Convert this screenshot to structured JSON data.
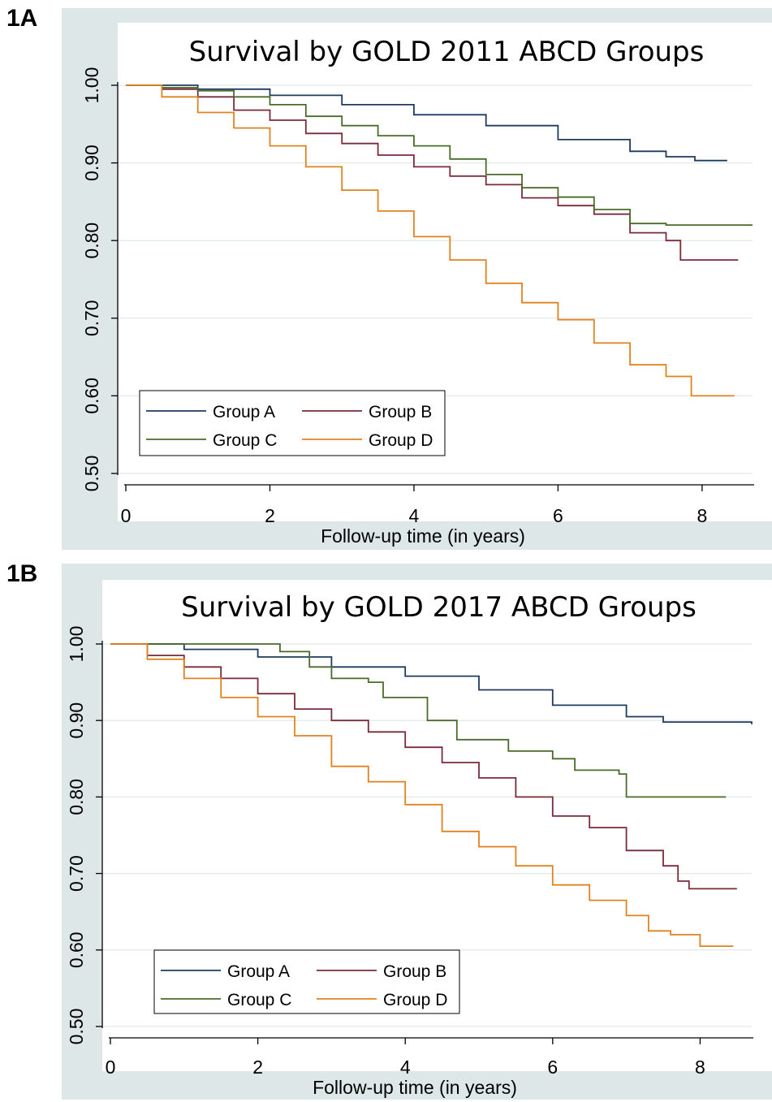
{
  "panels": [
    {
      "label": "1A",
      "chart_data": {
        "type": "line",
        "title": "Survival by GOLD 2011 ABCD Groups",
        "xlabel": "Follow-up time (in years)",
        "ylabel": "",
        "xlim": [
          0,
          8.7
        ],
        "ylim": [
          0.5,
          1.0
        ],
        "xticks": [
          0,
          2,
          4,
          6,
          8
        ],
        "yticks": [
          0.5,
          0.6,
          0.7,
          0.8,
          0.9,
          1.0
        ],
        "ytick_labels": [
          "0.50",
          "0.60",
          "0.70",
          "0.80",
          "0.90",
          "1.00"
        ],
        "grid": "horizontal",
        "legend_placement": "bottom-left",
        "series": [
          {
            "name": "Group A",
            "color": "#1f3a60",
            "points": [
              [
                0,
                1.0
              ],
              [
                1,
                0.995
              ],
              [
                2,
                0.987
              ],
              [
                3,
                0.975
              ],
              [
                4,
                0.962
              ],
              [
                5,
                0.948
              ],
              [
                6,
                0.93
              ],
              [
                7,
                0.915
              ],
              [
                7.5,
                0.908
              ],
              [
                7.9,
                0.903
              ],
              [
                8.35,
                0.903
              ]
            ]
          },
          {
            "name": "Group B",
            "color": "#7a2a3a",
            "points": [
              [
                0,
                1.0
              ],
              [
                0.5,
                0.995
              ],
              [
                1,
                0.985
              ],
              [
                1.5,
                0.968
              ],
              [
                2,
                0.955
              ],
              [
                2.5,
                0.938
              ],
              [
                3,
                0.925
              ],
              [
                3.5,
                0.91
              ],
              [
                4,
                0.895
              ],
              [
                4.5,
                0.883
              ],
              [
                5,
                0.872
              ],
              [
                5.5,
                0.855
              ],
              [
                6,
                0.845
              ],
              [
                6.5,
                0.834
              ],
              [
                7,
                0.81
              ],
              [
                7.5,
                0.8
              ],
              [
                7.7,
                0.775
              ],
              [
                8.5,
                0.775
              ]
            ]
          },
          {
            "name": "Group C",
            "color": "#4a6b2a",
            "points": [
              [
                0,
                1.0
              ],
              [
                0.5,
                0.997
              ],
              [
                1,
                0.993
              ],
              [
                1.5,
                0.985
              ],
              [
                2,
                0.975
              ],
              [
                2.5,
                0.96
              ],
              [
                3,
                0.948
              ],
              [
                3.5,
                0.935
              ],
              [
                4,
                0.922
              ],
              [
                4.5,
                0.905
              ],
              [
                5,
                0.885
              ],
              [
                5.5,
                0.868
              ],
              [
                6,
                0.856
              ],
              [
                6.5,
                0.84
              ],
              [
                7,
                0.822
              ],
              [
                7.5,
                0.82
              ],
              [
                8.7,
                0.82
              ]
            ]
          },
          {
            "name": "Group D",
            "color": "#e0831f",
            "points": [
              [
                0,
                1.0
              ],
              [
                0.5,
                0.985
              ],
              [
                1,
                0.965
              ],
              [
                1.5,
                0.945
              ],
              [
                2,
                0.922
              ],
              [
                2.5,
                0.895
              ],
              [
                3,
                0.865
              ],
              [
                3.5,
                0.838
              ],
              [
                4,
                0.805
              ],
              [
                4.5,
                0.775
              ],
              [
                5,
                0.745
              ],
              [
                5.5,
                0.72
              ],
              [
                6,
                0.698
              ],
              [
                6.5,
                0.668
              ],
              [
                7,
                0.64
              ],
              [
                7.5,
                0.625
              ],
              [
                7.85,
                0.6
              ],
              [
                8.45,
                0.6
              ]
            ]
          }
        ]
      }
    },
    {
      "label": "1B",
      "chart_data": {
        "type": "line",
        "title": "Survival by GOLD 2017 ABCD Groups",
        "xlabel": "Follow-up time (in years)",
        "ylabel": "",
        "xlim": [
          0,
          8.7
        ],
        "ylim": [
          0.5,
          1.0
        ],
        "xticks": [
          0,
          2,
          4,
          6,
          8
        ],
        "yticks": [
          0.5,
          0.6,
          0.7,
          0.8,
          0.9,
          1.0
        ],
        "ytick_labels": [
          "0.50",
          "0.60",
          "0.70",
          "0.80",
          "0.90",
          "1.00"
        ],
        "grid": "horizontal",
        "legend_placement": "bottom-left",
        "series": [
          {
            "name": "Group A",
            "color": "#1f3a60",
            "points": [
              [
                0,
                1.0
              ],
              [
                1,
                0.993
              ],
              [
                2,
                0.983
              ],
              [
                3,
                0.97
              ],
              [
                4,
                0.958
              ],
              [
                5,
                0.94
              ],
              [
                6,
                0.92
              ],
              [
                7,
                0.905
              ],
              [
                7.5,
                0.898
              ],
              [
                8.7,
                0.895
              ]
            ]
          },
          {
            "name": "Group B",
            "color": "#7a2a3a",
            "points": [
              [
                0,
                1.0
              ],
              [
                0.5,
                0.985
              ],
              [
                1,
                0.97
              ],
              [
                1.5,
                0.955
              ],
              [
                2,
                0.935
              ],
              [
                2.5,
                0.915
              ],
              [
                3,
                0.9
              ],
              [
                3.5,
                0.885
              ],
              [
                4,
                0.865
              ],
              [
                4.5,
                0.845
              ],
              [
                5,
                0.825
              ],
              [
                5.5,
                0.8
              ],
              [
                6,
                0.775
              ],
              [
                6.5,
                0.76
              ],
              [
                7,
                0.73
              ],
              [
                7.5,
                0.71
              ],
              [
                7.7,
                0.69
              ],
              [
                7.85,
                0.68
              ],
              [
                8.5,
                0.68
              ]
            ]
          },
          {
            "name": "Group C",
            "color": "#4a6b2a",
            "points": [
              [
                0,
                1.0
              ],
              [
                1,
                1.0
              ],
              [
                1.9,
                1.0
              ],
              [
                2.3,
                0.99
              ],
              [
                2.7,
                0.97
              ],
              [
                3,
                0.955
              ],
              [
                3.5,
                0.95
              ],
              [
                3.7,
                0.93
              ],
              [
                4,
                0.93
              ],
              [
                4.3,
                0.9
              ],
              [
                4.5,
                0.9
              ],
              [
                4.7,
                0.875
              ],
              [
                5,
                0.875
              ],
              [
                5.4,
                0.86
              ],
              [
                6,
                0.85
              ],
              [
                6.3,
                0.835
              ],
              [
                6.9,
                0.83
              ],
              [
                7,
                0.8
              ],
              [
                8.35,
                0.8
              ]
            ]
          },
          {
            "name": "Group D",
            "color": "#e0831f",
            "points": [
              [
                0,
                1.0
              ],
              [
                0.5,
                0.98
              ],
              [
                1,
                0.955
              ],
              [
                1.5,
                0.93
              ],
              [
                2,
                0.905
              ],
              [
                2.5,
                0.88
              ],
              [
                3,
                0.84
              ],
              [
                3.5,
                0.82
              ],
              [
                4,
                0.79
              ],
              [
                4.5,
                0.755
              ],
              [
                5,
                0.735
              ],
              [
                5.5,
                0.71
              ],
              [
                6,
                0.685
              ],
              [
                6.5,
                0.665
              ],
              [
                7,
                0.645
              ],
              [
                7.3,
                0.625
              ],
              [
                7.6,
                0.62
              ],
              [
                8,
                0.605
              ],
              [
                8.45,
                0.605
              ]
            ]
          }
        ]
      }
    }
  ]
}
